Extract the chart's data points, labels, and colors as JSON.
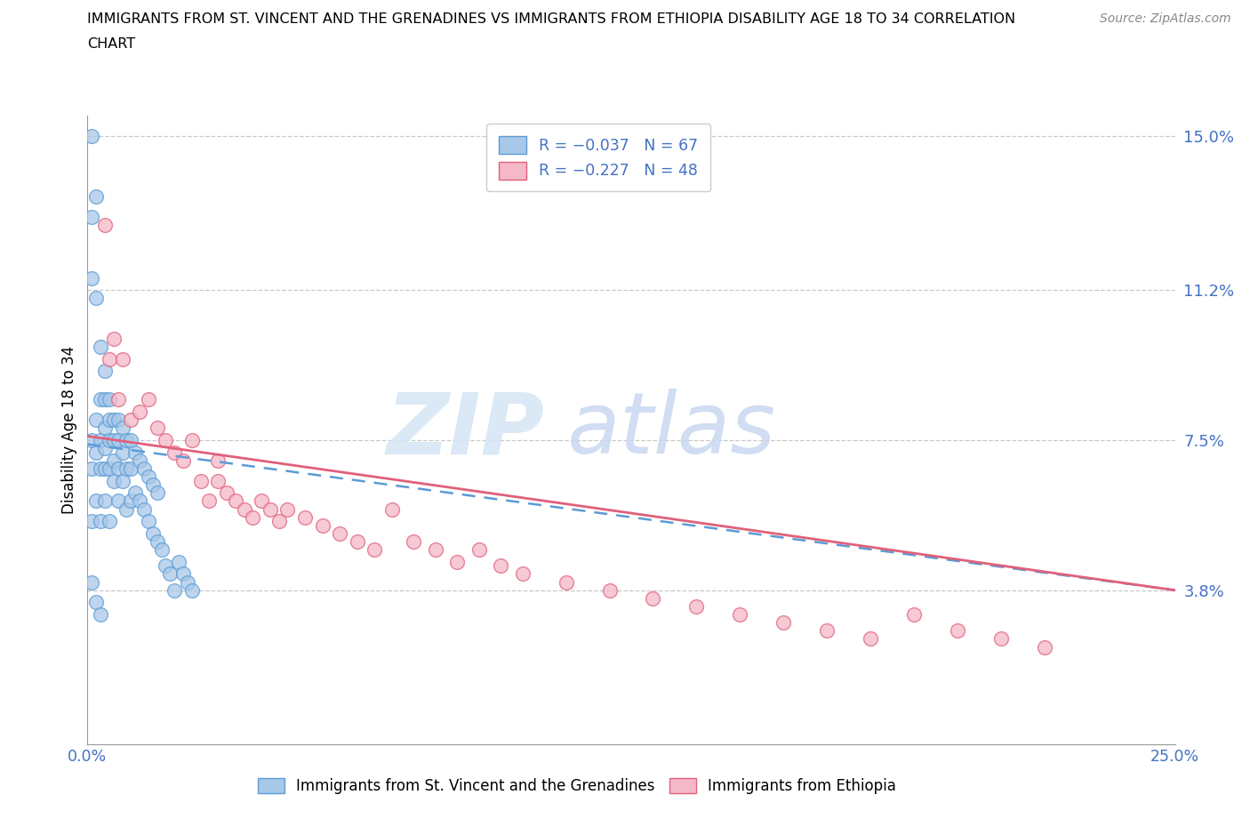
{
  "title_line1": "IMMIGRANTS FROM ST. VINCENT AND THE GRENADINES VS IMMIGRANTS FROM ETHIOPIA DISABILITY AGE 18 TO 34 CORRELATION",
  "title_line2": "CHART",
  "source": "Source: ZipAtlas.com",
  "ylabel": "Disability Age 18 to 34",
  "xlim": [
    0.0,
    0.25
  ],
  "ylim": [
    0.0,
    0.155
  ],
  "ytick_vals": [
    0.038,
    0.075,
    0.112,
    0.15
  ],
  "ytick_labels": [
    "3.8%",
    "7.5%",
    "11.2%",
    "15.0%"
  ],
  "xtick_vals": [
    0.0,
    0.05,
    0.1,
    0.15,
    0.2,
    0.25
  ],
  "xtick_labels": [
    "0.0%",
    "",
    "",
    "",
    "",
    "25.0%"
  ],
  "blue_color": "#a8c8e8",
  "blue_edge": "#5b9bd5",
  "pink_color": "#f4b8c8",
  "pink_edge": "#e0607a",
  "blue_line_color": "#5b9bd5",
  "pink_line_color": "#e0607a",
  "grid_color": "#c8c8c8",
  "axis_color": "#999999",
  "tick_label_color": "#4472c4",
  "blue_name": "Immigrants from St. Vincent and the Grenadines",
  "pink_name": "Immigrants from Ethiopia",
  "blue_R": -0.037,
  "blue_N": 67,
  "pink_R": -0.227,
  "pink_N": 48,
  "blue_line_y0": 0.074,
  "blue_line_y1": 0.038,
  "pink_line_y0": 0.076,
  "pink_line_y1": 0.038,
  "blue_x": [
    0.001,
    0.001,
    0.001,
    0.001,
    0.001,
    0.001,
    0.002,
    0.002,
    0.002,
    0.002,
    0.002,
    0.003,
    0.003,
    0.003,
    0.003,
    0.003,
    0.004,
    0.004,
    0.004,
    0.004,
    0.004,
    0.004,
    0.005,
    0.005,
    0.005,
    0.005,
    0.005,
    0.006,
    0.006,
    0.006,
    0.006,
    0.007,
    0.007,
    0.007,
    0.007,
    0.008,
    0.008,
    0.008,
    0.009,
    0.009,
    0.009,
    0.01,
    0.01,
    0.01,
    0.011,
    0.011,
    0.012,
    0.012,
    0.013,
    0.013,
    0.014,
    0.014,
    0.015,
    0.015,
    0.016,
    0.016,
    0.017,
    0.018,
    0.019,
    0.02,
    0.021,
    0.022,
    0.023,
    0.024,
    0.001,
    0.002,
    0.003
  ],
  "blue_y": [
    0.15,
    0.13,
    0.115,
    0.075,
    0.068,
    0.055,
    0.135,
    0.11,
    0.08,
    0.072,
    0.06,
    0.098,
    0.085,
    0.075,
    0.068,
    0.055,
    0.092,
    0.085,
    0.078,
    0.073,
    0.068,
    0.06,
    0.085,
    0.08,
    0.075,
    0.068,
    0.055,
    0.08,
    0.075,
    0.07,
    0.065,
    0.08,
    0.075,
    0.068,
    0.06,
    0.078,
    0.072,
    0.065,
    0.075,
    0.068,
    0.058,
    0.075,
    0.068,
    0.06,
    0.072,
    0.062,
    0.07,
    0.06,
    0.068,
    0.058,
    0.066,
    0.055,
    0.064,
    0.052,
    0.062,
    0.05,
    0.048,
    0.044,
    0.042,
    0.038,
    0.045,
    0.042,
    0.04,
    0.038,
    0.04,
    0.035,
    0.032
  ],
  "pink_x": [
    0.004,
    0.005,
    0.006,
    0.007,
    0.008,
    0.01,
    0.012,
    0.014,
    0.016,
    0.018,
    0.02,
    0.022,
    0.024,
    0.026,
    0.028,
    0.03,
    0.032,
    0.034,
    0.036,
    0.038,
    0.04,
    0.042,
    0.044,
    0.046,
    0.05,
    0.054,
    0.058,
    0.062,
    0.066,
    0.07,
    0.075,
    0.08,
    0.085,
    0.09,
    0.095,
    0.1,
    0.11,
    0.12,
    0.13,
    0.14,
    0.15,
    0.16,
    0.17,
    0.18,
    0.19,
    0.2,
    0.21,
    0.22,
    0.03
  ],
  "pink_y": [
    0.128,
    0.095,
    0.1,
    0.085,
    0.095,
    0.08,
    0.082,
    0.085,
    0.078,
    0.075,
    0.072,
    0.07,
    0.075,
    0.065,
    0.06,
    0.065,
    0.062,
    0.06,
    0.058,
    0.056,
    0.06,
    0.058,
    0.055,
    0.058,
    0.056,
    0.054,
    0.052,
    0.05,
    0.048,
    0.058,
    0.05,
    0.048,
    0.045,
    0.048,
    0.044,
    0.042,
    0.04,
    0.038,
    0.036,
    0.034,
    0.032,
    0.03,
    0.028,
    0.026,
    0.032,
    0.028,
    0.026,
    0.024,
    0.07
  ]
}
